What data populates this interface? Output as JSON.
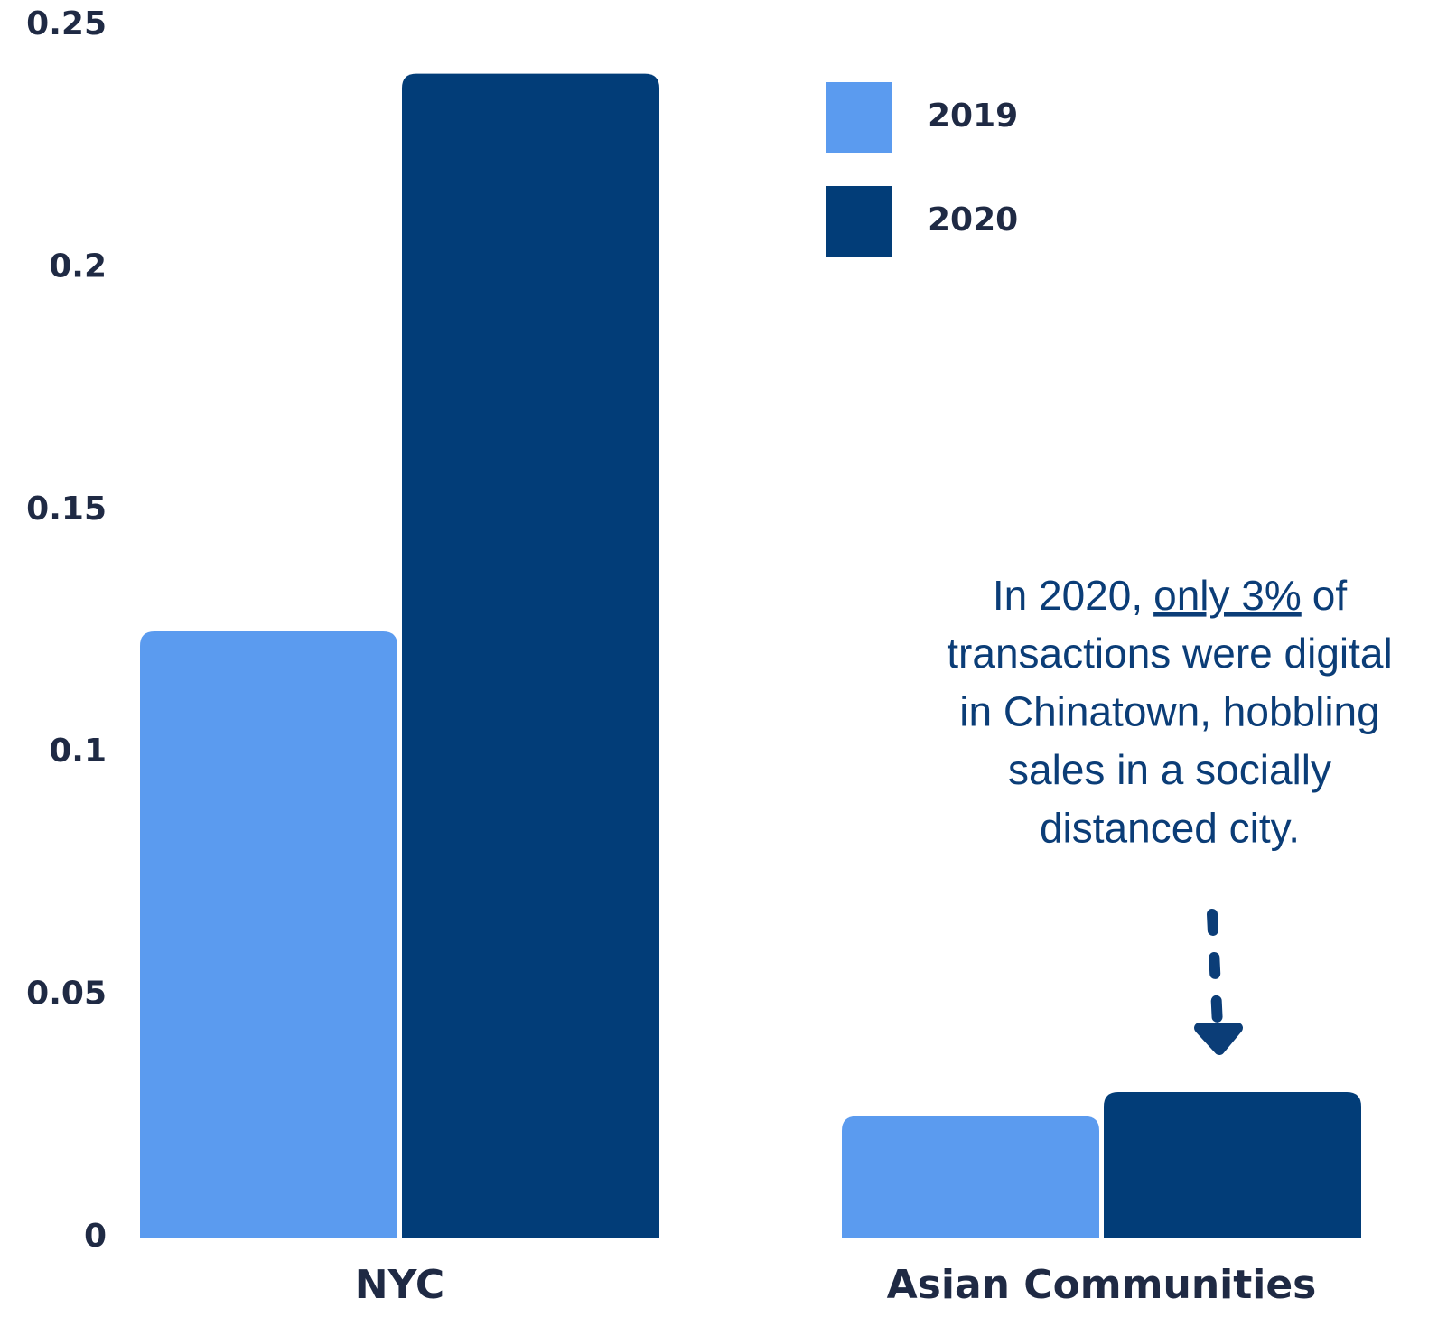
{
  "chart_data": {
    "type": "bar",
    "categories": [
      "NYC",
      "Asian Communities"
    ],
    "series": [
      {
        "name": "2019",
        "color": "#5b9bef",
        "values": [
          0.125,
          0.025
        ]
      },
      {
        "name": "2020",
        "color": "#023d78",
        "values": [
          0.24,
          0.03
        ]
      }
    ],
    "ylim": [
      0,
      0.25
    ],
    "yticks": [
      0,
      0.05,
      0.1,
      0.15,
      0.2,
      0.25
    ],
    "grid": false,
    "legend": "top-right",
    "annotation": {
      "lead": "In 2020,",
      "emphasis": "only 3%",
      "tail": "of",
      "lines": [
        "transactions were digital",
        "in Chinatown, hobbling",
        "sales in a socially",
        "distanced city."
      ]
    }
  }
}
